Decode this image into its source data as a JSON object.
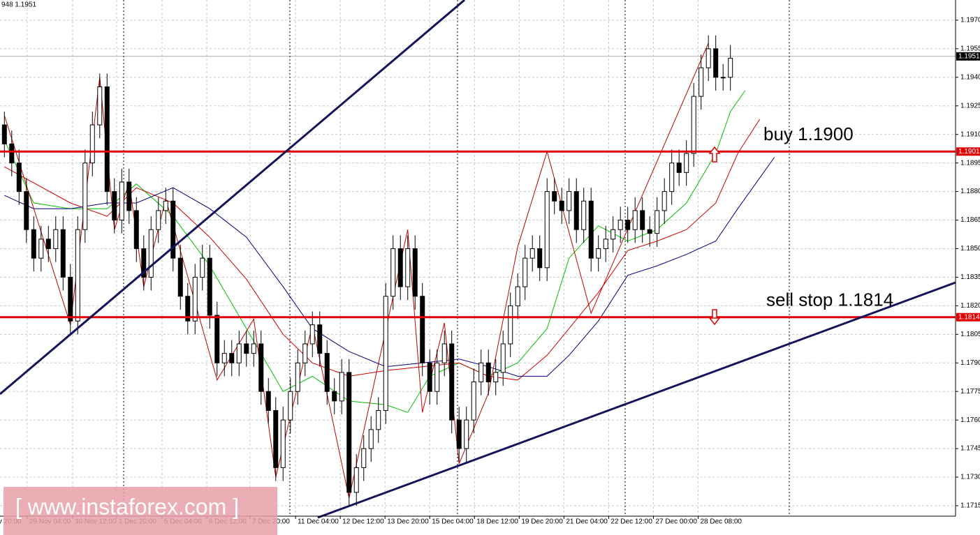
{
  "header": "948 1.1951",
  "chart_data": {
    "type": "candlestick",
    "open": [
      1.1915,
      1.1905,
      1.1895,
      1.188,
      1.186,
      1.1845,
      1.1855,
      1.185,
      1.186,
      1.1835,
      1.1812,
      1.186,
      1.1895,
      1.1915,
      1.1935,
      1.188,
      1.1865,
      1.1885,
      1.187,
      1.185,
      1.1835,
      1.186,
      1.187,
      1.1875,
      1.1845,
      1.1825,
      1.1812,
      1.1835,
      1.1845,
      1.1815,
      1.179,
      1.1795,
      1.179,
      1.18,
      1.1795,
      1.18,
      1.1775,
      1.1765,
      1.1735,
      1.176,
      1.1775,
      1.179,
      1.18,
      1.181,
      1.1795,
      1.1775,
      1.177,
      1.1785,
      1.1722,
      1.1735,
      1.1745,
      1.1755,
      1.1765,
      1.1825,
      1.185,
      1.183,
      1.185,
      1.1825,
      1.179,
      1.1775,
      1.179,
      1.18,
      1.176,
      1.1745,
      1.176,
      1.178,
      1.179,
      1.178,
      1.1785,
      1.18,
      1.182,
      1.183,
      1.1845,
      1.185,
      1.184,
      1.188,
      1.1875,
      1.187,
      1.188,
      1.186,
      1.1875,
      1.1845,
      1.185,
      1.1855,
      1.186,
      1.1865,
      1.186,
      1.187,
      1.186,
      1.1858,
      1.187,
      1.188,
      1.1895,
      1.189,
      1.19,
      1.193,
      1.1945,
      1.1955,
      1.194,
      1.194
    ],
    "high": [
      1.1922,
      1.1912,
      1.1902,
      1.1887,
      1.1867,
      1.1862,
      1.1862,
      1.1867,
      1.1867,
      1.1842,
      1.1867,
      1.1902,
      1.1922,
      1.1942,
      1.1942,
      1.1887,
      1.1892,
      1.1892,
      1.1877,
      1.1857,
      1.1867,
      1.1877,
      1.1882,
      1.1882,
      1.1852,
      1.1832,
      1.1842,
      1.1852,
      1.1852,
      1.1822,
      1.1802,
      1.1802,
      1.1807,
      1.1807,
      1.1807,
      1.1807,
      1.1782,
      1.1772,
      1.1767,
      1.1782,
      1.1797,
      1.1807,
      1.1817,
      1.1817,
      1.1802,
      1.1782,
      1.1792,
      1.1792,
      1.1742,
      1.1752,
      1.1762,
      1.1772,
      1.1832,
      1.1857,
      1.1857,
      1.1857,
      1.1857,
      1.1832,
      1.1797,
      1.1797,
      1.1807,
      1.1807,
      1.1767,
      1.1767,
      1.1787,
      1.1797,
      1.1797,
      1.1792,
      1.1807,
      1.1827,
      1.1837,
      1.1852,
      1.1857,
      1.1857,
      1.1887,
      1.1887,
      1.1882,
      1.1887,
      1.1887,
      1.1882,
      1.1882,
      1.1857,
      1.1862,
      1.1867,
      1.1872,
      1.1872,
      1.1877,
      1.1877,
      1.1867,
      1.1877,
      1.1887,
      1.1902,
      1.1902,
      1.1907,
      1.1937,
      1.1952,
      1.1962,
      1.1962,
      1.1947,
      1.1957
    ],
    "low": [
      1.1898,
      1.1888,
      1.1873,
      1.1853,
      1.1838,
      1.1838,
      1.1843,
      1.1843,
      1.1828,
      1.1805,
      1.1805,
      1.1853,
      1.1888,
      1.1908,
      1.1873,
      1.1858,
      1.1858,
      1.1863,
      1.1843,
      1.1828,
      1.1828,
      1.1853,
      1.1863,
      1.1838,
      1.1818,
      1.1805,
      1.1805,
      1.1828,
      1.1808,
      1.1783,
      1.1783,
      1.1783,
      1.1783,
      1.1788,
      1.1788,
      1.1768,
      1.1758,
      1.1728,
      1.1728,
      1.1753,
      1.1768,
      1.1783,
      1.1793,
      1.1788,
      1.1768,
      1.1763,
      1.1763,
      1.1715,
      1.1715,
      1.1728,
      1.1738,
      1.1748,
      1.1758,
      1.1818,
      1.1823,
      1.1823,
      1.1818,
      1.1783,
      1.1768,
      1.1768,
      1.1783,
      1.1753,
      1.1738,
      1.1738,
      1.1753,
      1.1773,
      1.1773,
      1.1773,
      1.1778,
      1.1793,
      1.1813,
      1.1823,
      1.1838,
      1.1833,
      1.1833,
      1.1868,
      1.1863,
      1.1863,
      1.1853,
      1.1853,
      1.1838,
      1.1838,
      1.1843,
      1.1848,
      1.1853,
      1.1853,
      1.1853,
      1.1853,
      1.1851,
      1.1851,
      1.1863,
      1.1873,
      1.1883,
      1.1883,
      1.1893,
      1.1923,
      1.1938,
      1.1933,
      1.1933,
      1.1933
    ],
    "close": [
      1.1905,
      1.1895,
      1.188,
      1.186,
      1.1845,
      1.1855,
      1.185,
      1.186,
      1.1835,
      1.1812,
      1.186,
      1.1895,
      1.1915,
      1.1935,
      1.188,
      1.1865,
      1.1885,
      1.187,
      1.185,
      1.1835,
      1.186,
      1.187,
      1.1875,
      1.1845,
      1.1825,
      1.1812,
      1.1835,
      1.1845,
      1.1815,
      1.179,
      1.1795,
      1.179,
      1.18,
      1.1795,
      1.18,
      1.1775,
      1.1765,
      1.1735,
      1.176,
      1.1775,
      1.179,
      1.18,
      1.181,
      1.1795,
      1.1775,
      1.177,
      1.1785,
      1.1722,
      1.1735,
      1.1745,
      1.1755,
      1.1765,
      1.1825,
      1.185,
      1.183,
      1.185,
      1.1825,
      1.179,
      1.1775,
      1.179,
      1.18,
      1.176,
      1.1745,
      1.176,
      1.178,
      1.179,
      1.178,
      1.1785,
      1.18,
      1.182,
      1.183,
      1.1845,
      1.185,
      1.184,
      1.188,
      1.1875,
      1.187,
      1.188,
      1.186,
      1.1875,
      1.1845,
      1.185,
      1.1855,
      1.186,
      1.1865,
      1.186,
      1.187,
      1.186,
      1.1858,
      1.187,
      1.188,
      1.1895,
      1.189,
      1.19,
      1.193,
      1.1945,
      1.1955,
      1.194,
      1.194,
      1.195
    ],
    "lines": [
      {
        "color": "#00c000",
        "x": [
          0,
          4,
          9,
          14,
          18,
          23,
          28,
          33,
          38,
          42,
          47,
          52,
          55,
          58,
          62,
          66,
          70,
          74,
          77,
          81,
          85,
          89,
          93,
          97,
          99,
          101
        ],
        "values": [
          1.1907,
          1.1874,
          1.1871,
          1.1871,
          1.1884,
          1.1867,
          1.1841,
          1.1808,
          1.1775,
          1.1783,
          1.177,
          1.1768,
          1.1764,
          1.1783,
          1.179,
          1.1783,
          1.179,
          1.1808,
          1.1845,
          1.1862,
          1.1854,
          1.186,
          1.1874,
          1.19,
          1.1922,
          1.1933
        ]
      },
      {
        "color": "#d00000",
        "x": [
          0,
          9,
          14,
          18,
          23,
          28,
          33,
          38,
          42,
          47,
          52,
          57,
          62,
          66,
          70,
          74,
          77,
          81,
          85,
          89,
          93,
          97,
          100,
          103
        ],
        "values": [
          1.1893,
          1.1874,
          1.1867,
          1.1882,
          1.1874,
          1.1856,
          1.1834,
          1.1805,
          1.179,
          1.1783,
          1.1786,
          1.1788,
          1.179,
          1.1783,
          1.1781,
          1.1794,
          1.1808,
          1.1827,
          1.1849,
          1.1854,
          1.186,
          1.1874,
          1.19,
          1.1918
        ]
      },
      {
        "color": "#000080",
        "x": [
          0,
          4,
          9,
          14,
          18,
          23,
          28,
          33,
          38,
          42,
          47,
          52,
          57,
          62,
          66,
          70,
          74,
          77,
          81,
          85,
          89,
          93,
          97,
          100,
          105
        ],
        "values": [
          1.1878,
          1.1871,
          1.1871,
          1.1874,
          1.1874,
          1.1882,
          1.1871,
          1.1856,
          1.183,
          1.1808,
          1.1796,
          1.1788,
          1.179,
          1.1792,
          1.1788,
          1.1783,
          1.1783,
          1.1794,
          1.1812,
          1.1836,
          1.1841,
          1.1847,
          1.1854,
          1.1871,
          1.1898
        ]
      },
      {
        "color": "#c00000",
        "x": [
          0,
          9,
          13,
          15,
          17,
          19,
          22,
          29,
          34,
          37,
          42,
          47,
          55,
          57,
          60,
          62,
          66,
          70,
          74,
          80,
          96
        ],
        "values": [
          1.192,
          1.181,
          1.194,
          1.186,
          1.1885,
          1.183,
          1.1876,
          1.1781,
          1.1813,
          1.173,
          1.181,
          1.1719,
          1.186,
          1.1764,
          1.1811,
          1.1737,
          1.1774,
          1.1851,
          1.1901,
          1.1816,
          1.1958
        ]
      }
    ],
    "levels": [
      {
        "value": 1.1901,
        "label": "1.1901",
        "color": "#e00000",
        "annotation": "buy 1.1900"
      },
      {
        "value": 1.1814,
        "label": "1.1814",
        "color": "#e00000",
        "annotation": "sell stop 1.1814"
      }
    ],
    "current": {
      "value": 1.1951,
      "label": "1.1951"
    },
    "xlim": [
      -0.6,
      129.7
    ],
    "ylim": [
      1.17095,
      1.19806
    ],
    "yticks": [
      {
        "value": 1.1715,
        "label": "1.1715"
      },
      {
        "value": 1.173,
        "label": "1.1730"
      },
      {
        "value": 1.1745,
        "label": "1.1745"
      },
      {
        "value": 1.176,
        "label": "1.1760"
      },
      {
        "value": 1.1775,
        "label": "1.1775"
      },
      {
        "value": 1.179,
        "label": "1.1790"
      },
      {
        "value": 1.1805,
        "label": "1.1805"
      },
      {
        "value": 1.182,
        "label": "1.1820"
      },
      {
        "value": 1.1835,
        "label": "1.1835"
      },
      {
        "value": 1.185,
        "label": "1.1850"
      },
      {
        "value": 1.1865,
        "label": "1.1865"
      },
      {
        "value": 1.188,
        "label": "1.1880"
      },
      {
        "value": 1.1895,
        "label": "1.1895"
      },
      {
        "value": 1.191,
        "label": "1.1910"
      },
      {
        "value": 1.1925,
        "label": "1.1925"
      },
      {
        "value": 1.194,
        "label": "1.1940"
      },
      {
        "value": 1.1955,
        "label": "1.1955"
      },
      {
        "value": 1.197,
        "label": "1.1970"
      }
    ],
    "xticks": [
      {
        "value": -1.1,
        "label": "v 20:00"
      },
      {
        "value": 3.1,
        "label": "29 Nov 04:00"
      },
      {
        "value": 9.3,
        "label": "30 Nov 12:00"
      },
      {
        "value": 15.3,
        "label": "1 Dec 20:00"
      },
      {
        "value": 21.5,
        "label": "5 Dec 04:00"
      },
      {
        "value": 27.6,
        "label": "6 Dec 12:00"
      },
      {
        "value": 33.5,
        "label": "7 Dec 20:00"
      },
      {
        "value": 39.7,
        "label": "11 Dec 04:00"
      },
      {
        "value": 45.8,
        "label": "12 Dec 12:00"
      },
      {
        "value": 51.9,
        "label": "13 Dec 20:00"
      },
      {
        "value": 58,
        "label": "15 Dec 04:00"
      },
      {
        "value": 64.1,
        "label": "18 Dec 12:00"
      },
      {
        "value": 70.2,
        "label": "19 Dec 20:00"
      },
      {
        "value": 76.3,
        "label": "21 Dec 04:00"
      },
      {
        "value": 82.4,
        "label": "22 Dec 12:00"
      },
      {
        "value": 88.5,
        "label": "27 Dec 00:00"
      },
      {
        "value": 94.6,
        "label": "28 Dec 08:00"
      }
    ],
    "grid": true
  },
  "watermark": "[ www.instaforex.com ]"
}
